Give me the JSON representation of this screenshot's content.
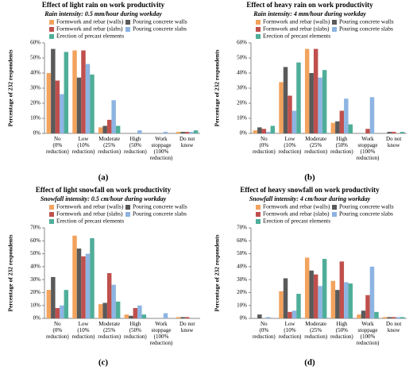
{
  "chart_data": [
    {
      "type": "bar",
      "title": "Effect of light rain on work productivity",
      "subtitle": "Rain intensity: 0.5 mm/hour during workday",
      "ylabel": "Percentage of 232 respondents",
      "panel_label": "(a)",
      "categories": [
        "No\n(0%\nreduction)",
        "Low\n(10%\nreduction)",
        "Moderate\n(25%\nreduction)",
        "High\n(50%\nreduction)",
        "Work\nstoppage\n(100%\nreduction)",
        "Do not\nknow"
      ],
      "series": [
        {
          "name": "Formwork and rebar (walls)",
          "color": "#f2a35e",
          "values": [
            40,
            55,
            4,
            0,
            0,
            1
          ]
        },
        {
          "name": "Pouring concrete walls",
          "color": "#5a5a5a",
          "values": [
            56,
            37,
            5,
            0,
            0,
            1
          ]
        },
        {
          "name": "Formwork and rebar (slabs)",
          "color": "#c0504d",
          "values": [
            35,
            55,
            9,
            0,
            0,
            1
          ]
        },
        {
          "name": "Pouring concrete slabs",
          "color": "#8db4e2",
          "values": [
            26,
            46,
            22,
            2,
            1,
            1
          ]
        },
        {
          "name": "Erection of precast elements",
          "color": "#4fae99",
          "values": [
            54,
            39,
            5,
            0,
            0,
            2
          ]
        }
      ],
      "ylim": [
        0,
        60
      ],
      "yticks": [
        {
          "value": 0,
          "label": "0%"
        },
        {
          "value": 10,
          "label": "10%"
        },
        {
          "value": 20,
          "label": "20%"
        },
        {
          "value": 30,
          "label": "30%"
        },
        {
          "value": 40,
          "label": "40%"
        },
        {
          "value": 50,
          "label": "50%"
        },
        {
          "value": 60,
          "label": "60%"
        }
      ],
      "grid": false
    },
    {
      "type": "bar",
      "title": "Effect of heavy rain on work productivity",
      "subtitle": "Rain intensity: 4 mm/hour during workday",
      "ylabel": "Percentage of 232 respondents",
      "panel_label": "(b)",
      "categories": [
        "No\n(0%\nreduction)",
        "Low\n(10%\nreduction)",
        "Moderate\n(25%\nreduction)",
        "High\n(50%\nreduction)",
        "Work\nstoppage\n(100%\nreduction)",
        "Do not\nknow"
      ],
      "series": [
        {
          "name": "Formwork and rebar (walls)",
          "color": "#f2a35e",
          "values": [
            2,
            34,
            56,
            7,
            0,
            0
          ]
        },
        {
          "name": "Pouring concrete walls",
          "color": "#5a5a5a",
          "values": [
            4,
            44,
            40,
            8,
            0,
            1
          ]
        },
        {
          "name": "Formwork and rebar (slabs)",
          "color": "#c0504d",
          "values": [
            3,
            25,
            56,
            15,
            3,
            1
          ]
        },
        {
          "name": "Pouring concrete slabs",
          "color": "#8db4e2",
          "values": [
            1,
            15,
            37,
            23,
            24,
            0
          ]
        },
        {
          "name": "Erection of precast elements",
          "color": "#4fae99",
          "values": [
            5,
            47,
            42,
            6,
            0,
            1
          ]
        }
      ],
      "ylim": [
        0,
        60
      ],
      "yticks": [
        {
          "value": 0,
          "label": "0%"
        },
        {
          "value": 10,
          "label": "10%"
        },
        {
          "value": 20,
          "label": "20%"
        },
        {
          "value": 30,
          "label": "30%"
        },
        {
          "value": 40,
          "label": "40%"
        },
        {
          "value": 50,
          "label": "50%"
        },
        {
          "value": 60,
          "label": "60%"
        }
      ],
      "grid": false
    },
    {
      "type": "bar",
      "title": "Effect of light snowfall on work productivity",
      "subtitle": "Snowfall intensity: 0.5 cm/hour during workday",
      "ylabel": "Percentage of 232 respondents",
      "panel_label": "(c)",
      "categories": [
        "No\n(0%\nreduction)",
        "Low\n(10%\nreduction)",
        "Moderate\n(25%\nreduction)",
        "High\n(50%\nreduction)",
        "Work\nstoppage\n(100%\nreduction)",
        "Do not\nknow"
      ],
      "series": [
        {
          "name": "Formwork and rebar (walls)",
          "color": "#f2a35e",
          "values": [
            22,
            64,
            11,
            3,
            0,
            1
          ]
        },
        {
          "name": "Pouring concrete walls",
          "color": "#5a5a5a",
          "values": [
            32,
            54,
            12,
            2,
            0,
            1
          ]
        },
        {
          "name": "Formwork and rebar (slabs)",
          "color": "#c0504d",
          "values": [
            8,
            48,
            35,
            8,
            0,
            1
          ]
        },
        {
          "name": "Pouring concrete slabs",
          "color": "#8db4e2",
          "values": [
            10,
            50,
            26,
            10,
            4,
            0
          ]
        },
        {
          "name": "Erection of precast elements",
          "color": "#4fae99",
          "values": [
            22,
            62,
            13,
            3,
            0,
            0
          ]
        }
      ],
      "ylim": [
        0,
        70
      ],
      "yticks": [
        {
          "value": 0,
          "label": "0%"
        },
        {
          "value": 10,
          "label": "10%"
        },
        {
          "value": 20,
          "label": "20%"
        },
        {
          "value": 30,
          "label": "30%"
        },
        {
          "value": 40,
          "label": "40%"
        },
        {
          "value": 50,
          "label": "50%"
        },
        {
          "value": 60,
          "label": "60%"
        },
        {
          "value": 70,
          "label": "70%"
        }
      ],
      "grid": false
    },
    {
      "type": "bar",
      "title": "Effect of heavy snowfall on work productivity",
      "subtitle": "Snowfall intensity: 4 cm/hour during workday",
      "ylabel": "Percentage of 232 respondents",
      "panel_label": "(d)",
      "categories": [
        "No\n(0%\nreduction)",
        "Low\n(10%\nreduction)",
        "Moderate\n(25%\nreduction)",
        "High\n(50%\nreduction)",
        "Work\nstoppage\n(100%\nreduction)",
        "Do not\nknow"
      ],
      "series": [
        {
          "name": "Formwork and rebar (walls)",
          "color": "#f2a35e",
          "values": [
            0,
            21,
            47,
            29,
            3,
            1
          ]
        },
        {
          "name": "Pouring concrete walls",
          "color": "#5a5a5a",
          "values": [
            3,
            31,
            37,
            22,
            6,
            1
          ]
        },
        {
          "name": "Formwork and rebar (slabs)",
          "color": "#c0504d",
          "values": [
            0,
            5,
            34,
            44,
            18,
            1
          ]
        },
        {
          "name": "Pouring concrete slabs",
          "color": "#8db4e2",
          "values": [
            1,
            6,
            25,
            28,
            40,
            1
          ]
        },
        {
          "name": "Erection of precast elements",
          "color": "#4fae99",
          "values": [
            0,
            19,
            46,
            27,
            5,
            1
          ]
        }
      ],
      "ylim": [
        0,
        70
      ],
      "yticks": [
        {
          "value": 0,
          "label": "0%"
        },
        {
          "value": 10,
          "label": "10%"
        },
        {
          "value": 20,
          "label": "20%"
        },
        {
          "value": 30,
          "label": "30%"
        },
        {
          "value": 40,
          "label": "40%"
        },
        {
          "value": 50,
          "label": "50%"
        },
        {
          "value": 60,
          "label": "60%"
        },
        {
          "value": 70,
          "label": "70%"
        }
      ],
      "grid": false
    }
  ]
}
